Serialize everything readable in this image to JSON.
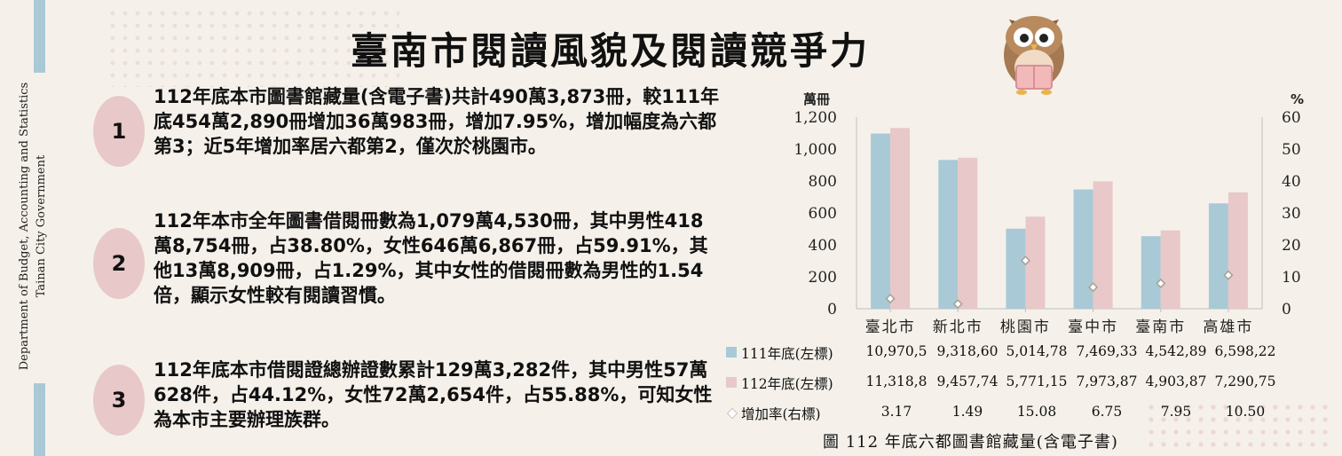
{
  "title": "臺南市閱讀風貌及閱讀競爭力",
  "side_text": [
    "Department of Budget, Accounting and Statistics",
    "Tainan City Government"
  ],
  "points": [
    {
      "number": "1",
      "text": "112年底本市圖書館藏量(含電子書)共計490萬3,873冊，較111年底454萬2,890冊增加36萬983冊，增加7.95%，增加幅度為六都第3；近5年增加率居六都第2，僅次於桃園市。"
    },
    {
      "number": "2",
      "text": "112年本市全年圖書借閱冊數為1,079萬4,530冊，其中男性418萬8,754冊，占38.80%，女性646萬6,867冊，占59.91%，其他13萬8,909冊，占1.29%，其中女性的借閱冊數為男性的1.54倍，顯示女性較有閱讀習慣。"
    },
    {
      "number": "3",
      "text": "112年底本市借閱證總辦證數累計129萬3,282件，其中男性57萬628件，占44.12%，女性72萬2,654件，占55.88%，可知女性為本市主要辦理族群。"
    }
  ],
  "chart_data": {
    "type": "bar",
    "categories": [
      "臺北市",
      "新北市",
      "桃園市",
      "臺中市",
      "臺南市",
      "高雄市"
    ],
    "ylabel_left": "萬冊",
    "ylabel_right": "%",
    "ylim_left": [
      0,
      1200
    ],
    "ylim_right": [
      0,
      60
    ],
    "yticks_left": [
      "0",
      "200",
      "400",
      "600",
      "800",
      "1,000",
      "1,200"
    ],
    "yticks_right": [
      "0",
      "10",
      "20",
      "30",
      "40",
      "50",
      "60"
    ],
    "series": [
      {
        "name": "111年底(左標)",
        "axis": "left",
        "color": "#a9c9d6",
        "values": [
          1097.05,
          931.86,
          501.478,
          746.933,
          454.289,
          659.822
        ],
        "table_labels": [
          "10,970,5",
          "9,318,60",
          "5,014,78",
          "7,469,33",
          "4,542,89",
          "6,598,22"
        ]
      },
      {
        "name": "112年底(左標)",
        "axis": "left",
        "color": "#e8c8c8",
        "values": [
          1131.88,
          945.774,
          577.115,
          797.387,
          490.387,
          729.075
        ],
        "table_labels": [
          "11,318,8",
          "9,457,74",
          "5,771,15",
          "7,973,87",
          "4,903,87",
          "7,290,75"
        ]
      },
      {
        "name": "增加率(右標)",
        "axis": "right",
        "type": "scatter",
        "marker": "diamond",
        "color": "#a8a39a",
        "values": [
          3.17,
          1.49,
          15.08,
          6.75,
          7.95,
          10.5
        ],
        "table_labels": [
          "3.17",
          "1.49",
          "15.08",
          "6.75",
          "7.95",
          "10.50"
        ]
      }
    ],
    "caption": "圖 112 年底六都圖書館藏量(含電子書)"
  }
}
